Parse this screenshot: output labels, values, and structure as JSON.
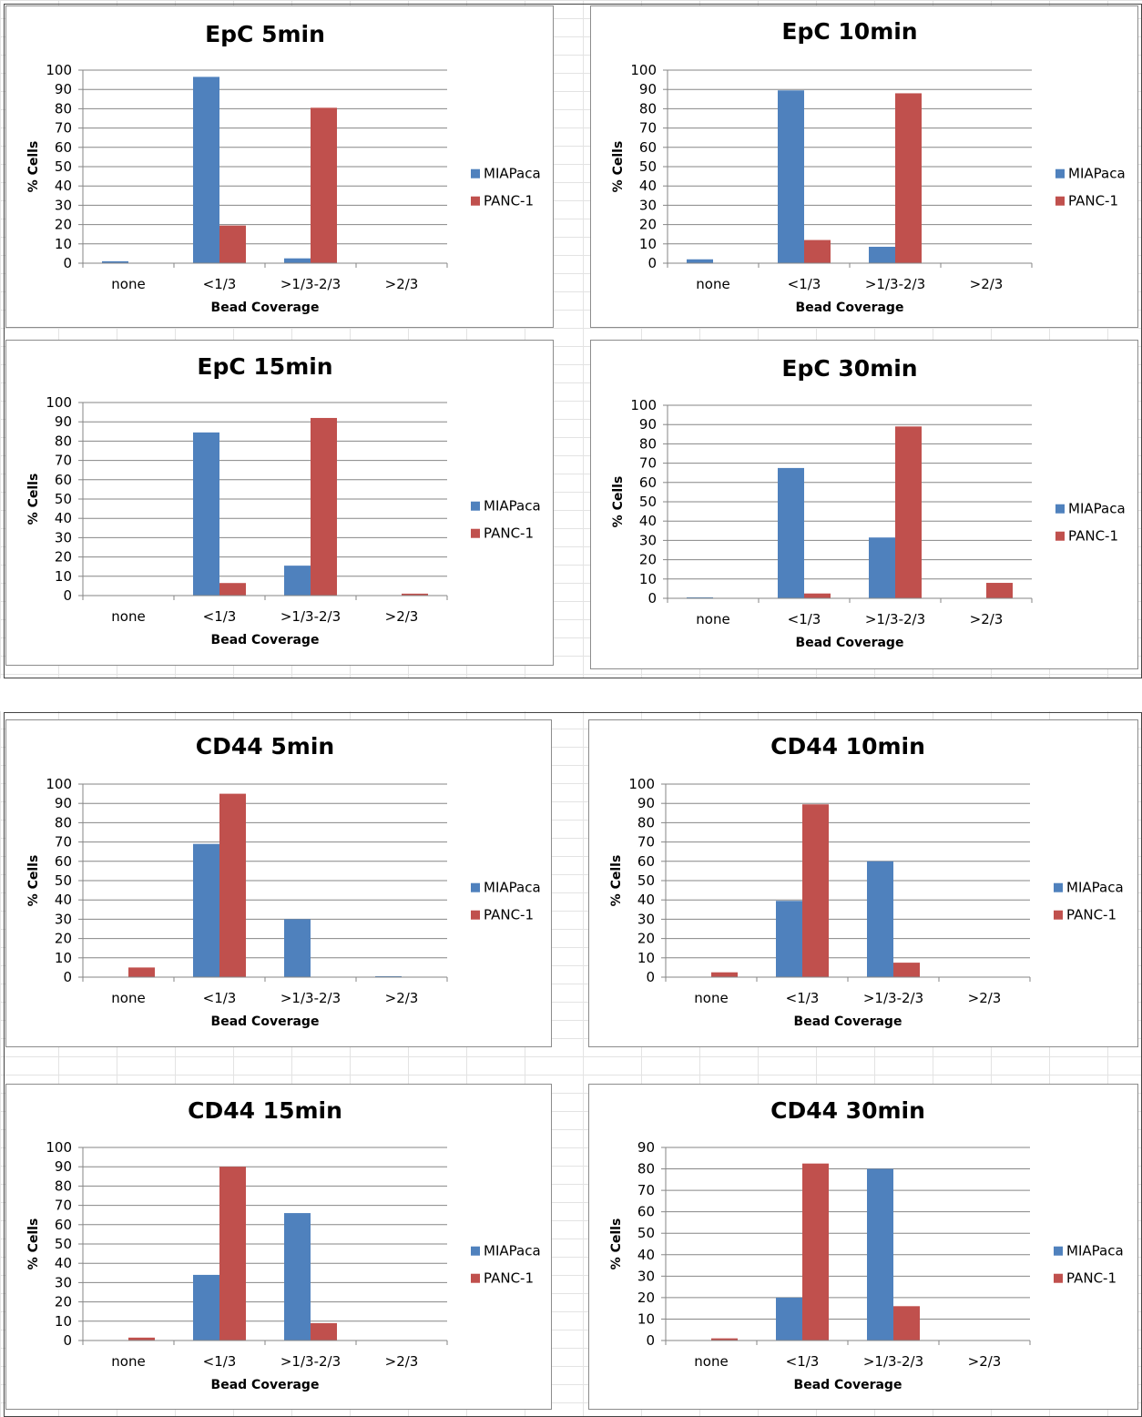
{
  "colors": {
    "MIAPaca": "#4F81BD",
    "PANC-1": "#C0504D"
  },
  "chart_data": [
    {
      "type": "bar",
      "title": "EpC 5min",
      "xlabel": "Bead Coverage",
      "ylabel": "% Cells",
      "categories": [
        "none",
        "<1/3",
        ">1/3-2/3",
        ">2/3"
      ],
      "ylim": [
        0,
        100
      ],
      "yticks": [
        0,
        10,
        20,
        30,
        40,
        50,
        60,
        70,
        80,
        90,
        100
      ],
      "series": [
        {
          "name": "MIAPaca",
          "values": [
            1,
            96.5,
            2.5,
            0
          ]
        },
        {
          "name": "PANC-1",
          "values": [
            0,
            19.5,
            80.5,
            0
          ]
        }
      ]
    },
    {
      "type": "bar",
      "title": "EpC 10min",
      "xlabel": "Bead Coverage",
      "ylabel": "% Cells",
      "categories": [
        "none",
        "<1/3",
        ">1/3-2/3",
        ">2/3"
      ],
      "ylim": [
        0,
        100
      ],
      "yticks": [
        0,
        10,
        20,
        30,
        40,
        50,
        60,
        70,
        80,
        90,
        100
      ],
      "series": [
        {
          "name": "MIAPaca",
          "values": [
            2,
            89.5,
            8.5,
            0
          ]
        },
        {
          "name": "PANC-1",
          "values": [
            0,
            12,
            88,
            0
          ]
        }
      ]
    },
    {
      "type": "bar",
      "title": "EpC 15min",
      "xlabel": "Bead Coverage",
      "ylabel": "% Cells",
      "categories": [
        "none",
        "<1/3",
        ">1/3-2/3",
        ">2/3"
      ],
      "ylim": [
        0,
        100
      ],
      "yticks": [
        0,
        10,
        20,
        30,
        40,
        50,
        60,
        70,
        80,
        90,
        100
      ],
      "series": [
        {
          "name": "MIAPaca",
          "values": [
            0,
            84.5,
            15.5,
            0
          ]
        },
        {
          "name": "PANC-1",
          "values": [
            0,
            6.5,
            92,
            1
          ]
        }
      ]
    },
    {
      "type": "bar",
      "title": "EpC 30min",
      "xlabel": "Bead Coverage",
      "ylabel": "% Cells",
      "categories": [
        "none",
        "<1/3",
        ">1/3-2/3",
        ">2/3"
      ],
      "ylim": [
        0,
        100
      ],
      "yticks": [
        0,
        10,
        20,
        30,
        40,
        50,
        60,
        70,
        80,
        90,
        100
      ],
      "series": [
        {
          "name": "MIAPaca",
          "values": [
            0.5,
            67.5,
            31.5,
            0
          ]
        },
        {
          "name": "PANC-1",
          "values": [
            0,
            2.5,
            89,
            8
          ]
        }
      ]
    },
    {
      "type": "bar",
      "title": "CD44 5min",
      "xlabel": "Bead Coverage",
      "ylabel": "% Cells",
      "categories": [
        "none",
        "<1/3",
        ">1/3-2/3",
        ">2/3"
      ],
      "ylim": [
        0,
        100
      ],
      "yticks": [
        0,
        10,
        20,
        30,
        40,
        50,
        60,
        70,
        80,
        90,
        100
      ],
      "series": [
        {
          "name": "MIAPaca",
          "values": [
            0,
            69,
            30,
            0.5
          ]
        },
        {
          "name": "PANC-1",
          "values": [
            5,
            95,
            0,
            0
          ]
        }
      ]
    },
    {
      "type": "bar",
      "title": "CD44 10min",
      "xlabel": "Bead Coverage",
      "ylabel": "% Cells",
      "categories": [
        "none",
        "<1/3",
        ">1/3-2/3",
        ">2/3"
      ],
      "ylim": [
        0,
        100
      ],
      "yticks": [
        0,
        10,
        20,
        30,
        40,
        50,
        60,
        70,
        80,
        90,
        100
      ],
      "series": [
        {
          "name": "MIAPaca",
          "values": [
            0,
            39.5,
            60,
            0
          ]
        },
        {
          "name": "PANC-1",
          "values": [
            2.5,
            89.5,
            7.5,
            0
          ]
        }
      ]
    },
    {
      "type": "bar",
      "title": "CD44 15min",
      "xlabel": "Bead Coverage",
      "ylabel": "% Cells",
      "categories": [
        "none",
        "<1/3",
        ">1/3-2/3",
        ">2/3"
      ],
      "ylim": [
        0,
        100
      ],
      "yticks": [
        0,
        10,
        20,
        30,
        40,
        50,
        60,
        70,
        80,
        90,
        100
      ],
      "series": [
        {
          "name": "MIAPaca",
          "values": [
            0,
            34,
            66,
            0
          ]
        },
        {
          "name": "PANC-1",
          "values": [
            1.5,
            90,
            9,
            0
          ]
        }
      ]
    },
    {
      "type": "bar",
      "title": "CD44 30min",
      "xlabel": "Bead Coverage",
      "ylabel": "% Cells",
      "categories": [
        "none",
        "<1/3",
        ">1/3-2/3",
        ">2/3"
      ],
      "ylim": [
        0,
        90
      ],
      "yticks": [
        0,
        10,
        20,
        30,
        40,
        50,
        60,
        70,
        80,
        90
      ],
      "series": [
        {
          "name": "MIAPaca",
          "values": [
            0,
            20,
            80,
            0
          ]
        },
        {
          "name": "PANC-1",
          "values": [
            1,
            82.5,
            16,
            0
          ]
        }
      ]
    }
  ]
}
